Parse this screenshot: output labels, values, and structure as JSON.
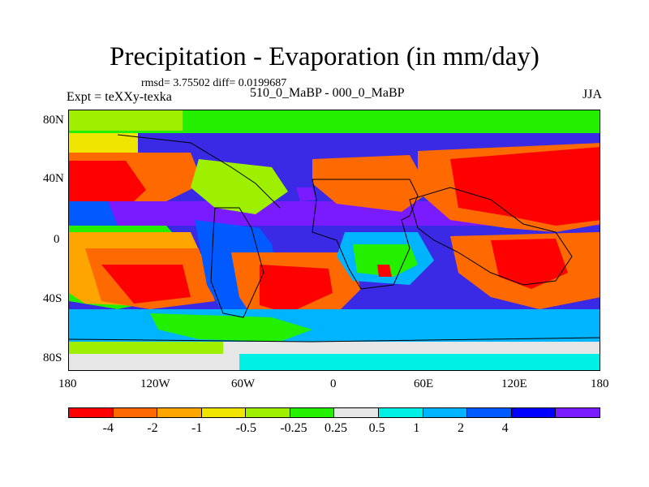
{
  "chart_data": {
    "type": "heatmap",
    "title": "Precipitation - Evaporation (in mm/day)",
    "stats_line": "rmsd= 3.75502 diff= 0.0199687",
    "experiment": "Expt = teXXy-texka",
    "subtitle": "510_0_MaBP - 000_0_MaBP",
    "season": "JJA",
    "x_ticks": [
      "180",
      "120W",
      "60W",
      "0",
      "60E",
      "120E",
      "180"
    ],
    "y_ticks": [
      "80N",
      "40N",
      "0",
      "40S",
      "80S"
    ],
    "xlim": [
      -180,
      180
    ],
    "ylim": [
      -90,
      90
    ],
    "colorbar": {
      "levels": [
        "-4",
        "-2",
        "-1",
        "-0.5",
        "-0.25",
        "0.25",
        "0.5",
        "1",
        "2",
        "4"
      ],
      "colors": [
        "#ff0000",
        "#ff6a00",
        "#ffa500",
        "#f0e500",
        "#9ef000",
        "#22f000",
        "#e6e6e6",
        "#00f0e6",
        "#00b4ff",
        "#005aff",
        "#0000ff",
        "#7a1bff"
      ]
    }
  }
}
